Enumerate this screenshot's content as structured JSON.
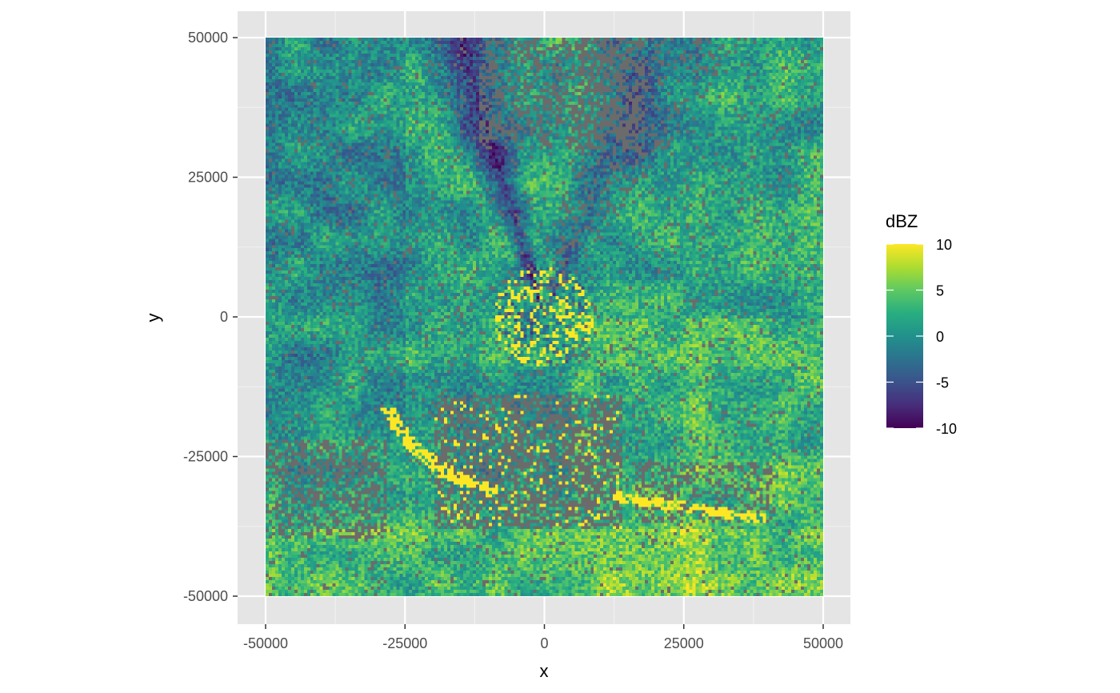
{
  "chart_data": {
    "type": "heatmap",
    "title": "",
    "xlabel": "x",
    "ylabel": "y",
    "xlim": [
      -50000,
      50000
    ],
    "ylim": [
      -50000,
      50000
    ],
    "x_ticks": [
      -50000,
      -25000,
      0,
      25000,
      50000
    ],
    "y_ticks": [
      50000,
      25000,
      0,
      -25000,
      -50000
    ],
    "x_tick_labels": [
      "-50000",
      "-25000",
      "0",
      "25000",
      "50000"
    ],
    "y_tick_labels": [
      "50000",
      "25000",
      "0",
      "-25000",
      "-50000"
    ],
    "grid": true,
    "legend": {
      "title": "dBZ",
      "placement": "right",
      "range": [
        -10,
        10
      ],
      "breaks": [
        10,
        5,
        0,
        -5,
        -10
      ],
      "break_labels": [
        "10",
        "5",
        "0",
        "-5",
        "-10"
      ],
      "colormap": "viridis"
    },
    "na_color": "#6b6b6b",
    "panel_color": "#e5e5e5",
    "description_of_field": "radar reflectivity raster on a 100 km square grid centred on the radar; values span roughly -10 to 10 dBZ with clutter rings near -25000 to -40000 y"
  }
}
